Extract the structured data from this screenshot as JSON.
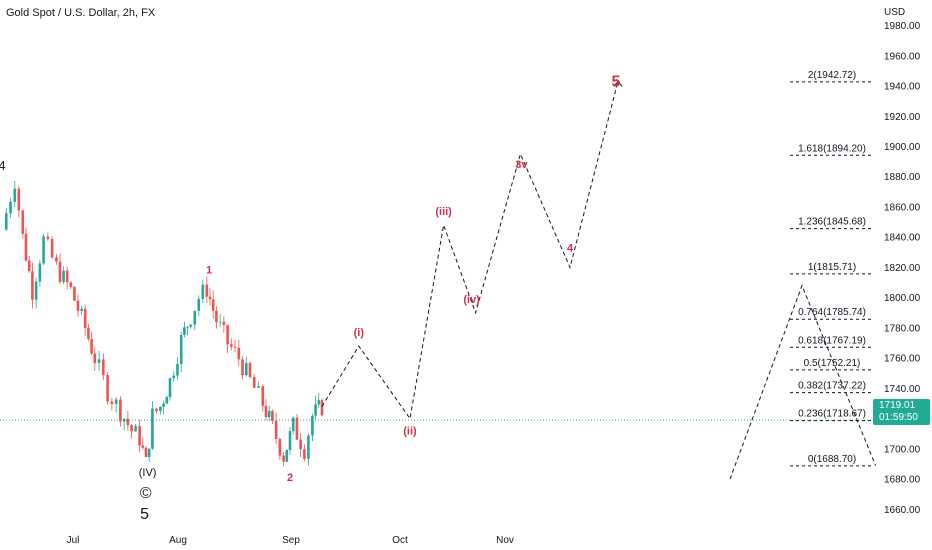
{
  "header": {
    "title": "Gold Spot / U.S. Dollar, 2h, FX",
    "currency": "USD"
  },
  "price_tag": {
    "price": "1719.01",
    "countdown": "01:59:50",
    "color": "#22ab94"
  },
  "colors": {
    "up_candle": "#26a69a",
    "down_candle": "#ef5350",
    "wave_label": "#d32f4a",
    "projection_line": "#131722",
    "fib_line": "#131722",
    "current_price_line": "#26a69a",
    "axis_text": "#131722"
  },
  "chart_data": {
    "type": "candlestick",
    "title": "Gold Spot / U.S. Dollar, 2h, FX",
    "ylabel": "USD",
    "ylim": [
      1645,
      1985
    ],
    "y_ticks": [
      "1980.00",
      "1960.00",
      "1940.00",
      "1920.00",
      "1900.00",
      "1880.00",
      "1860.00",
      "1840.00",
      "1820.00",
      "1800.00",
      "1780.00",
      "1760.00",
      "1740.00",
      "1720.00",
      "1700.00",
      "1680.00",
      "1660.00"
    ],
    "x_ticks": [
      "Jul",
      "Aug",
      "Sep",
      "Oct",
      "Nov"
    ],
    "current_price": 1719.01,
    "price_path": [
      [
        0,
        1845
      ],
      [
        0.8,
        1878
      ],
      [
        1.3,
        1840
      ],
      [
        1.9,
        1805
      ],
      [
        2.6,
        1838
      ],
      [
        3.4,
        1820
      ],
      [
        4.3,
        1805
      ],
      [
        5.2,
        1780
      ],
      [
        5.8,
        1760
      ],
      [
        6.6,
        1738
      ],
      [
        7.4,
        1725
      ],
      [
        8.1,
        1712
      ],
      [
        8.6,
        1707
      ],
      [
        9.0,
        1690
      ],
      [
        9.4,
        1722
      ],
      [
        9.9,
        1728
      ],
      [
        10.5,
        1745
      ],
      [
        11.2,
        1772
      ],
      [
        11.8,
        1788
      ],
      [
        12.3,
        1800
      ],
      [
        12.8,
        1806
      ],
      [
        13.4,
        1785
      ],
      [
        14.1,
        1770
      ],
      [
        14.8,
        1760
      ],
      [
        15.5,
        1745
      ],
      [
        16.3,
        1730
      ],
      [
        16.9,
        1714
      ],
      [
        17.6,
        1695
      ],
      [
        18.2,
        1715
      ],
      [
        18.9,
        1700
      ],
      [
        19.4,
        1722
      ],
      [
        20.0,
        1728
      ]
    ],
    "projection": [
      [
        20.0,
        1728
      ],
      [
        22.3,
        1768
      ],
      [
        25.5,
        1720
      ],
      [
        27.6,
        1848
      ],
      [
        29.6,
        1790
      ],
      [
        32.4,
        1895
      ],
      [
        35.5,
        1820
      ],
      [
        38.5,
        1943
      ]
    ],
    "projection_right": [
      [
        45.5,
        1680
      ],
      [
        50.0,
        1808
      ],
      [
        54.6,
        1689
      ]
    ],
    "wave_labels": [
      {
        "text": "4",
        "x": 0,
        "y": 1878,
        "style": "black"
      },
      {
        "text": "1",
        "x": 13.0,
        "y": 1808,
        "style": "red"
      },
      {
        "text": "2",
        "x": 18.0,
        "y": 1692,
        "style": "red"
      },
      {
        "text": "(i)",
        "x": 22.3,
        "y": 1768,
        "style": "red"
      },
      {
        "text": "(ii)",
        "x": 25.5,
        "y": 1720,
        "style": "red"
      },
      {
        "text": "(iii)",
        "x": 27.6,
        "y": 1848,
        "style": "red"
      },
      {
        "text": "(iv)",
        "x": 29.6,
        "y": 1790,
        "style": "red"
      },
      {
        "text": "3v",
        "x": 32.4,
        "y": 1895,
        "style": "red"
      },
      {
        "text": "4",
        "x": 35.5,
        "y": 1820,
        "style": "red"
      },
      {
        "text": "5",
        "x": 38.5,
        "y": 1943,
        "style": "red"
      },
      {
        "text": "©",
        "x": 9.1,
        "y": 1682,
        "style": "black"
      },
      {
        "text": "5",
        "x": 9.1,
        "y": 1682,
        "style": "black"
      },
      {
        "text": "(IV)",
        "x": 9.1,
        "y": 1682,
        "style": "black"
      }
    ],
    "fib_levels": [
      {
        "label": "2(1942.72)",
        "value": 1942.72
      },
      {
        "label": "1.618(1894.20)",
        "value": 1894.2
      },
      {
        "label": "1.236(1845.68)",
        "value": 1845.68
      },
      {
        "label": "1(1815.71)",
        "value": 1815.71
      },
      {
        "label": "0.764(1785.74)",
        "value": 1785.74
      },
      {
        "label": "0.618(1767.19)",
        "value": 1767.19
      },
      {
        "label": "0.5(1752.21)",
        "value": 1752.21
      },
      {
        "label": "0.382(1737.22)",
        "value": 1737.22
      },
      {
        "label": "0.236(1718.67)",
        "value": 1718.67
      },
      {
        "label": "0(1688.70)",
        "value": 1688.7
      }
    ]
  }
}
